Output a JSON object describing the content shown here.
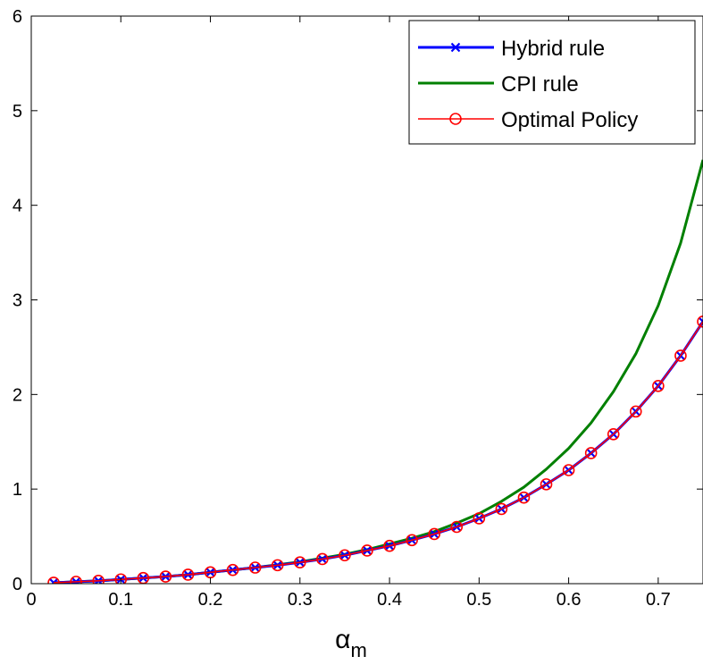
{
  "chart_data": {
    "type": "line",
    "title": "",
    "xlabel": "α",
    "xlabel_subscript": "m",
    "ylabel": "",
    "xlim": [
      0,
      0.75
    ],
    "ylim": [
      0,
      6
    ],
    "xticks": [
      0,
      0.1,
      0.2,
      0.3,
      0.4,
      0.5,
      0.6,
      0.7
    ],
    "xtick_labels": [
      "0",
      "0.1",
      "0.2",
      "0.3",
      "0.4",
      "0.5",
      "0.6",
      "0.7"
    ],
    "yticks": [
      0,
      1,
      2,
      3,
      4,
      5,
      6
    ],
    "ytick_labels": [
      "0",
      "1",
      "2",
      "3",
      "4",
      "5",
      "6"
    ],
    "grid": false,
    "legend_position": "top-right",
    "x": [
      0.025,
      0.05,
      0.075,
      0.1,
      0.125,
      0.15,
      0.175,
      0.2,
      0.225,
      0.25,
      0.275,
      0.3,
      0.325,
      0.35,
      0.375,
      0.4,
      0.425,
      0.45,
      0.475,
      0.5,
      0.525,
      0.55,
      0.575,
      0.6,
      0.625,
      0.65,
      0.675,
      0.7,
      0.725,
      0.75
    ],
    "series": [
      {
        "name": "Hybrid rule",
        "color": "#0000ff",
        "marker": "x",
        "values": [
          0.01,
          0.02,
          0.03,
          0.045,
          0.06,
          0.075,
          0.095,
          0.12,
          0.145,
          0.17,
          0.195,
          0.225,
          0.26,
          0.3,
          0.35,
          0.4,
          0.46,
          0.525,
          0.6,
          0.69,
          0.79,
          0.91,
          1.05,
          1.2,
          1.38,
          1.58,
          1.82,
          2.09,
          2.41,
          2.77
        ]
      },
      {
        "name": "CPI rule",
        "color": "#008000",
        "marker": "none",
        "values": [
          0.01,
          0.02,
          0.03,
          0.045,
          0.06,
          0.075,
          0.095,
          0.12,
          0.145,
          0.17,
          0.2,
          0.23,
          0.27,
          0.31,
          0.36,
          0.42,
          0.48,
          0.55,
          0.64,
          0.74,
          0.87,
          1.02,
          1.21,
          1.43,
          1.7,
          2.03,
          2.43,
          2.94,
          3.6,
          4.48
        ]
      },
      {
        "name": "Optimal Policy",
        "color": "#ff0000",
        "marker": "o",
        "values": [
          0.01,
          0.02,
          0.03,
          0.045,
          0.06,
          0.075,
          0.095,
          0.12,
          0.145,
          0.17,
          0.195,
          0.225,
          0.26,
          0.3,
          0.35,
          0.4,
          0.46,
          0.525,
          0.6,
          0.69,
          0.79,
          0.91,
          1.05,
          1.2,
          1.38,
          1.58,
          1.82,
          2.09,
          2.41,
          2.77
        ]
      }
    ]
  }
}
